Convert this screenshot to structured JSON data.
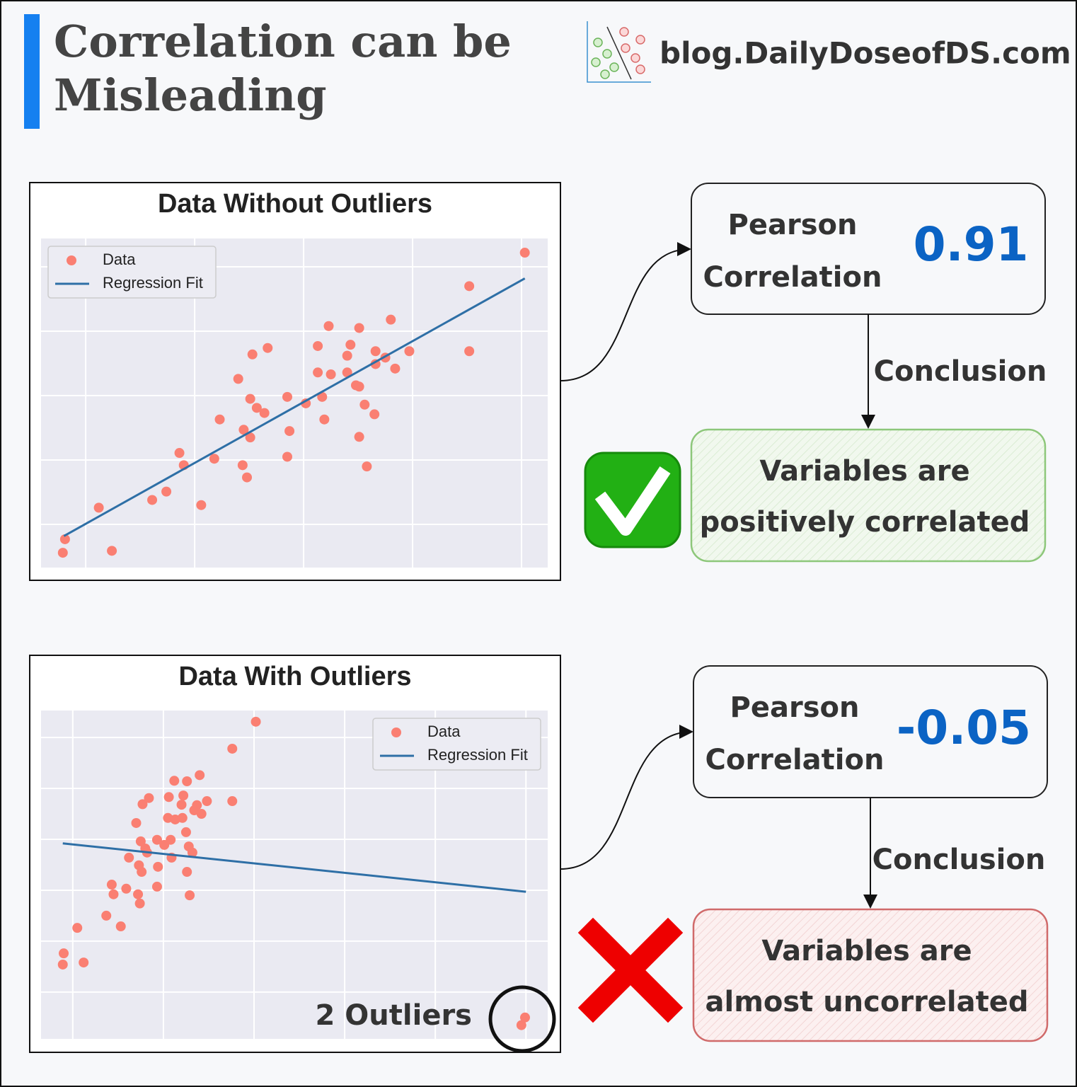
{
  "header": {
    "title_lines": [
      "Correlation can be",
      "Misleading"
    ],
    "site": "blog.DailyDoseofDS.com"
  },
  "chart_data": [
    {
      "type": "scatter",
      "title": "Data Without Outliers",
      "grid": true,
      "legend": "upper left",
      "xlim": [
        -0.41,
        4.24
      ],
      "ylim": [
        -0.67,
        4.44
      ],
      "xticks": [
        0,
        1,
        2,
        3,
        4
      ],
      "yticks": [
        0,
        1,
        2,
        3,
        4
      ],
      "series": [
        {
          "name": "Data",
          "kind": "scatter",
          "color": "#fa7f72",
          "x": [
            4.03,
            3.52,
            2.8,
            2.23,
            2.51,
            1.67,
            1.53,
            2.13,
            2.43,
            2.4,
            2.66,
            2.97,
            3.52,
            2.75,
            2.66,
            2.84,
            2.13,
            2.25,
            2.4,
            2.48,
            2.51,
            1.4,
            1.85,
            1.51,
            2.02,
            2.17,
            1.57,
            1.64,
            2.56,
            2.65,
            1.23,
            2.19,
            1.45,
            1.87,
            1.51,
            2.51,
            0.86,
            1.85,
            1.18,
            0.9,
            1.44,
            2.58,
            1.48,
            0.61,
            0.74,
            1.06,
            0.12,
            -0.19,
            -0.21,
            0.24
          ],
          "values": [
            4.22,
            3.7,
            3.18,
            3.08,
            3.05,
            2.74,
            2.64,
            2.77,
            2.79,
            2.62,
            2.69,
            2.69,
            2.69,
            2.59,
            2.49,
            2.42,
            2.36,
            2.33,
            2.36,
            2.16,
            2.14,
            2.26,
            1.98,
            1.95,
            1.88,
            1.98,
            1.81,
            1.73,
            1.86,
            1.71,
            1.63,
            1.63,
            1.47,
            1.45,
            1.35,
            1.36,
            1.11,
            1.05,
            1.02,
            0.92,
            0.92,
            0.9,
            0.73,
            0.38,
            0.51,
            0.3,
            0.26,
            -0.23,
            -0.44,
            -0.41
          ]
        },
        {
          "name": "Regression Fit",
          "kind": "line",
          "color": "#2e6fa6",
          "x": [
            -0.2,
            4.03
          ],
          "values": [
            -0.18,
            3.82
          ]
        }
      ]
    },
    {
      "type": "scatter",
      "title": "Data With Outliers",
      "grid": true,
      "legend": "upper right",
      "annotation": "2 Outliers",
      "xlim": [
        -0.35,
        5.24
      ],
      "ylim": [
        -0.92,
        5.53
      ],
      "xticks": [
        0,
        1,
        2,
        3,
        4,
        5
      ],
      "yticks": [
        0,
        1,
        2,
        3,
        4,
        5
      ],
      "series": [
        {
          "name": "Data",
          "kind": "scatter",
          "color": "#fa7f72",
          "x": [
            2.02,
            1.76,
            1.4,
            1.12,
            1.26,
            0.84,
            0.77,
            1.06,
            1.22,
            1.48,
            1.76,
            1.2,
            1.37,
            1.34,
            1.42,
            1.05,
            1.13,
            1.21,
            0.7,
            1.25,
            0.75,
            0.93,
            1.08,
            1.01,
            0.8,
            1.28,
            0.82,
            1.32,
            0.62,
            1.09,
            0.73,
            0.94,
            0.76,
            1.26,
            0.43,
            0.59,
            0.93,
            0.45,
            0.72,
            1.29,
            0.74,
            0.37,
            0.53,
            0.05,
            -0.1,
            -0.11,
            0.12,
            4.99,
            4.95
          ],
          "values": [
            5.31,
            4.78,
            4.26,
            4.15,
            4.14,
            3.81,
            3.69,
            3.83,
            3.86,
            3.75,
            3.75,
            3.68,
            3.67,
            3.57,
            3.5,
            3.42,
            3.39,
            3.42,
            3.32,
            3.14,
            2.96,
            2.99,
            2.99,
            2.89,
            2.82,
            2.86,
            2.74,
            2.74,
            2.64,
            2.64,
            2.49,
            2.46,
            2.36,
            2.36,
            2.11,
            2.03,
            2.07,
            1.92,
            1.92,
            1.9,
            1.74,
            1.5,
            1.29,
            1.26,
            0.76,
            0.54,
            0.58,
            -0.5,
            -0.65
          ]
        },
        {
          "name": "Regression Fit",
          "kind": "line",
          "color": "#2e6fa6",
          "x": [
            -0.11,
            5.0
          ],
          "values": [
            2.92,
            1.97
          ]
        }
      ]
    }
  ],
  "panels": [
    {
      "metric_lines": [
        "Pearson",
        "Correlation"
      ],
      "value": 0.91,
      "arrow_label": "Conclusion",
      "conclusion_lines": [
        "Variables are",
        "positively correlated"
      ]
    },
    {
      "metric_lines": [
        "Pearson",
        "Correlation"
      ],
      "value": -0.05,
      "arrow_label": "Conclusion",
      "conclusion_lines": [
        "Variables are",
        "almost uncorrelated"
      ]
    }
  ]
}
